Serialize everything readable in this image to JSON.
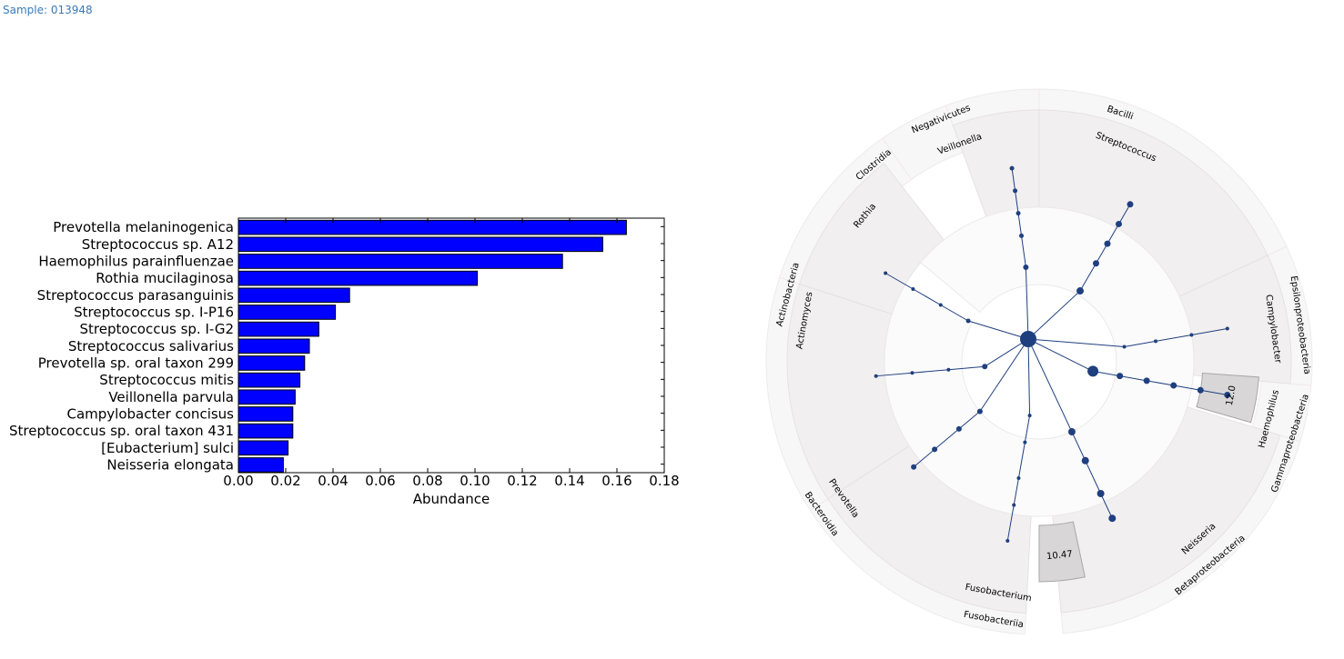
{
  "sample_label": "Sample: 013948",
  "chart_data": [
    {
      "type": "bar",
      "orientation": "horizontal",
      "categories": [
        "Prevotella melaninogenica",
        "Streptococcus sp. A12",
        "Haemophilus parainfluenzae",
        "Rothia mucilaginosa",
        "Streptococcus parasanguinis",
        "Streptococcus sp. I-P16",
        "Streptococcus sp. I-G2",
        "Streptococcus salivarius",
        "Prevotella sp. oral taxon 299",
        "Streptococcus mitis",
        "Veillonella parvula",
        "Campylobacter concisus",
        "Streptococcus sp. oral taxon 431",
        "[Eubacterium] sulci",
        "Neisseria elongata"
      ],
      "values": [
        0.164,
        0.154,
        0.137,
        0.101,
        0.047,
        0.041,
        0.034,
        0.03,
        0.028,
        0.026,
        0.024,
        0.023,
        0.023,
        0.021,
        0.019
      ],
      "xlabel": "Abundance",
      "xlim": [
        0,
        0.18
      ],
      "xticks": [
        "0.00",
        "0.02",
        "0.04",
        "0.06",
        "0.08",
        "0.10",
        "0.12",
        "0.14",
        "0.16",
        "0.18"
      ],
      "bar_color": "#0000ff"
    },
    {
      "type": "cladogram",
      "clades": [
        {
          "outer": "Negativicutes",
          "inner": "Veillonella"
        },
        {
          "outer": "Bacilli",
          "inner": "Streptococcus"
        },
        {
          "outer": "Epsilonproteobacteria",
          "inner": "Campylobacter"
        },
        {
          "outer": "Gammaproteobacteria",
          "inner": "Haemophilus"
        },
        {
          "outer": "Betaproteobacteria",
          "inner": "Neisseria"
        },
        {
          "outer": "Fusobacteriia",
          "inner": "Fusobacterium"
        },
        {
          "outer": "Bacteroidia",
          "inner": "Prevotella"
        },
        {
          "outer": "Actinobacteria",
          "inner": "Actinomyces"
        },
        {
          "outer": "Actinobacteria",
          "inner": "Rothia"
        },
        {
          "outer": "Clostridia",
          "inner": ""
        }
      ],
      "highlights": [
        "12.0",
        "10.47"
      ],
      "node_color": "#1f3f7f",
      "highlight_color": "#d8d6d7"
    }
  ]
}
